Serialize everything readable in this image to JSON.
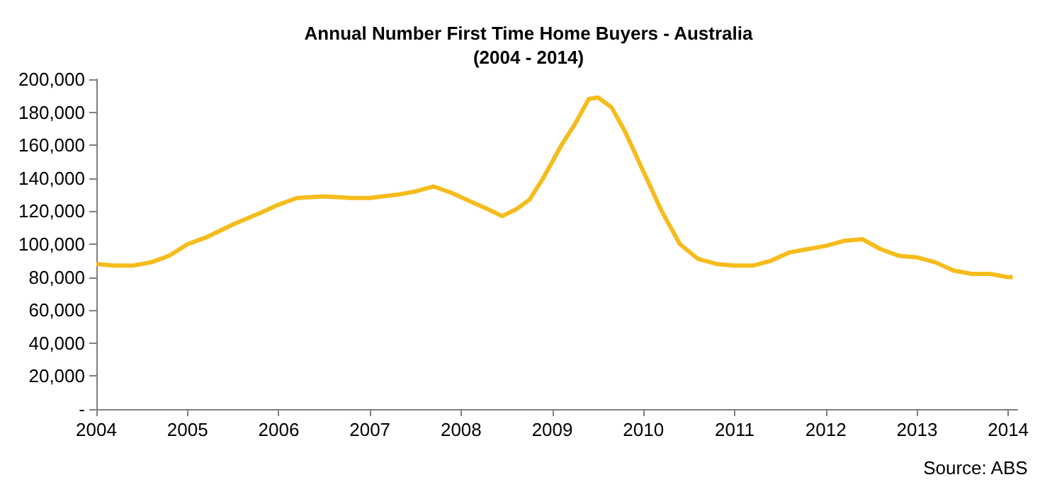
{
  "chart_data": {
    "type": "line",
    "title": "Annual Number First Time Home Buyers - Australia\n(2004 - 2014)",
    "annotations": [
      "Source: ABS"
    ],
    "x": [
      2004.0,
      2004.2,
      2004.4,
      2004.6,
      2004.8,
      2005.0,
      2005.2,
      2005.5,
      2005.8,
      2006.0,
      2006.2,
      2006.5,
      2006.8,
      2007.0,
      2007.3,
      2007.5,
      2007.7,
      2007.9,
      2008.1,
      2008.3,
      2008.45,
      2008.6,
      2008.75,
      2008.9,
      2009.1,
      2009.25,
      2009.4,
      2009.5,
      2009.65,
      2009.8,
      2010.0,
      2010.2,
      2010.4,
      2010.6,
      2010.8,
      2011.0,
      2011.2,
      2011.4,
      2011.6,
      2011.8,
      2012.0,
      2012.2,
      2012.4,
      2012.6,
      2012.8,
      2013.0,
      2013.2,
      2013.4,
      2013.6,
      2013.8,
      2014.0,
      2014.05
    ],
    "series": [
      {
        "color": "#f5bc1c",
        "values": [
          88000,
          87000,
          87000,
          89000,
          93000,
          100000,
          104000,
          112000,
          119000,
          124000,
          128000,
          129000,
          128000,
          128000,
          130000,
          132000,
          135000,
          131000,
          126000,
          121000,
          117000,
          121000,
          127000,
          140000,
          160000,
          173000,
          188000,
          189000,
          183000,
          168000,
          144000,
          120000,
          100000,
          91000,
          88000,
          87000,
          87000,
          90000,
          95000,
          97000,
          99000,
          102000,
          103000,
          97000,
          93000,
          92000,
          89000,
          84000,
          82000,
          82000,
          80000,
          80000
        ]
      }
    ],
    "xlim": [
      2004,
      2014.1
    ],
    "xticks": [
      2004,
      2005,
      2006,
      2007,
      2008,
      2009,
      2010,
      2011,
      2012,
      2013,
      2014
    ],
    "ylim": [
      0,
      200000
    ],
    "yticks": [
      {
        "value": 0,
        "label": "-"
      },
      {
        "value": 20000,
        "label": "20,000"
      },
      {
        "value": 40000,
        "label": "40,000"
      },
      {
        "value": 60000,
        "label": "60,000"
      },
      {
        "value": 80000,
        "label": "80,000"
      },
      {
        "value": 100000,
        "label": "100,000"
      },
      {
        "value": 120000,
        "label": "120,000"
      },
      {
        "value": 140000,
        "label": "140,000"
      },
      {
        "value": 160000,
        "label": "160,000"
      },
      {
        "value": 180000,
        "label": "180,000"
      },
      {
        "value": 200000,
        "label": "200,000"
      }
    ],
    "grid": false,
    "marker": "none",
    "line_style": "solid"
  }
}
